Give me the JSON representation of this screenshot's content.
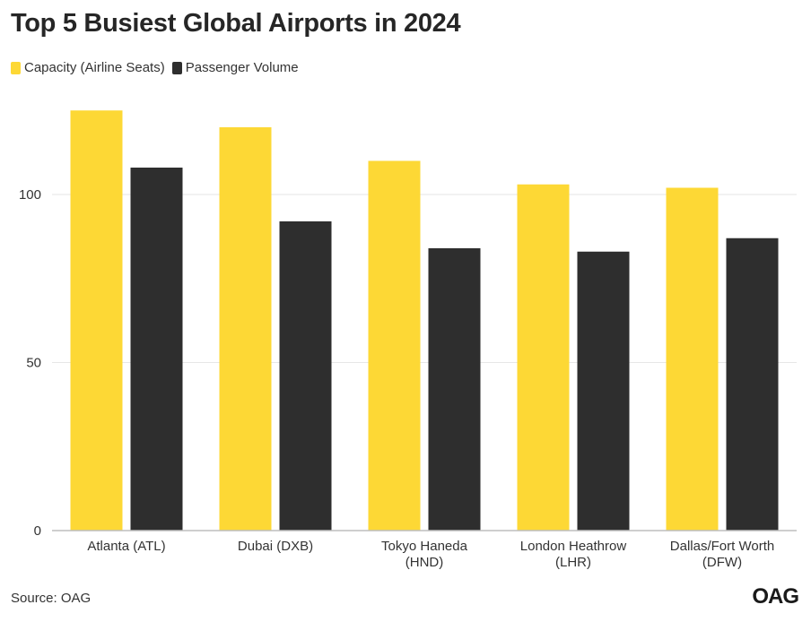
{
  "title": "Top 5 Busiest Global Airports in 2024",
  "source": "Source: OAG",
  "logo": "OAG",
  "colors": {
    "capacity": "#fdd835",
    "passenger": "#2e2e2e",
    "grid": "#e6e6e6",
    "axis": "#bdbdbd"
  },
  "chart_data": {
    "type": "bar",
    "categories": [
      [
        "Atlanta (ATL)"
      ],
      [
        "Dubai (DXB)"
      ],
      [
        "Tokyo Haneda",
        "(HND)"
      ],
      [
        "London Heathrow",
        "(LHR)"
      ],
      [
        "Dallas/Fort Worth",
        "(DFW)"
      ]
    ],
    "series": [
      {
        "name": "Capacity (Airline Seats)",
        "values": [
          125,
          120,
          110,
          103,
          102
        ]
      },
      {
        "name": "Passenger Volume",
        "values": [
          108,
          92,
          84,
          83,
          87
        ]
      }
    ],
    "ylim": [
      0,
      128
    ],
    "yticks": [
      0,
      50,
      100
    ],
    "grid": true,
    "legend": "top-left"
  }
}
